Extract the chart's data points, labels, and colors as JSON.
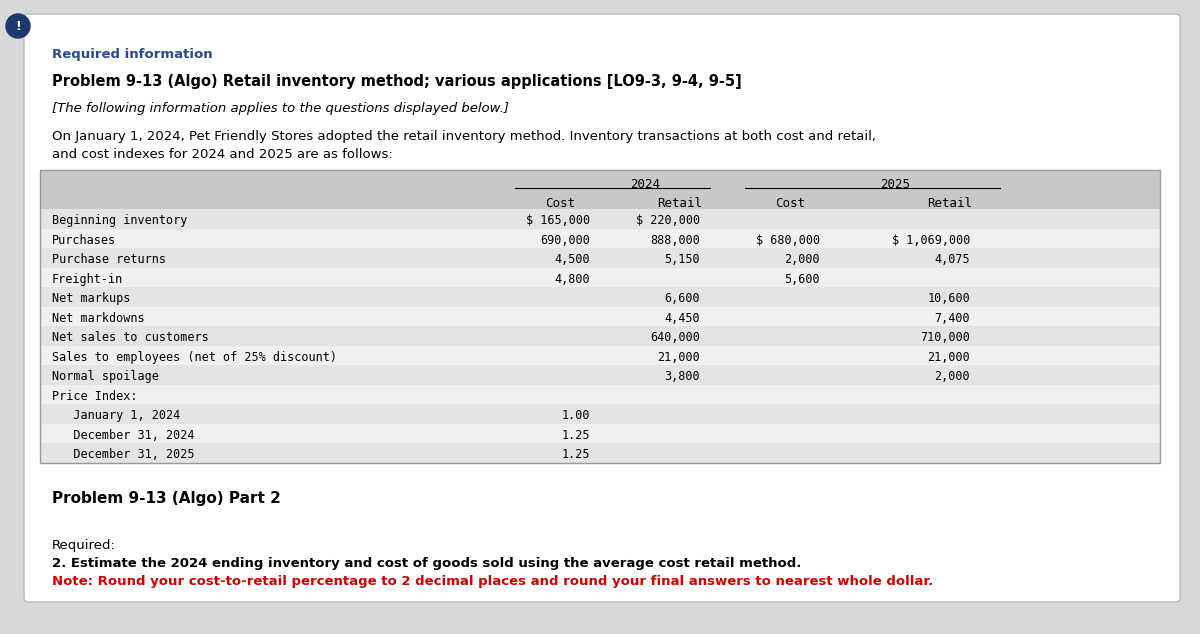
{
  "bg_color": "#d8d8d8",
  "card_color": "#ffffff",
  "required_info_color": "#2b4a8b",
  "circle_color": "#1a3a6b",
  "title_text": "Problem 9-13 (Algo) Retail inventory method; various applications [LO9-3, 9-4, 9-5]",
  "subtitle_text": "[The following information applies to the questions displayed below.]",
  "intro_line1": "On January 1, 2024, Pet Friendly Stores adopted the retail inventory method. Inventory transactions at both cost and retail,",
  "intro_line2": "and cost indexes for 2024 and 2025 are as follows:",
  "rows": [
    {
      "label": "Beginning inventory",
      "2024_cost": "$ 165,000",
      "2024_retail": "$ 220,000",
      "2025_cost": "",
      "2025_retail": ""
    },
    {
      "label": "Purchases",
      "2024_cost": "690,000",
      "2024_retail": "888,000",
      "2025_cost": "$ 680,000",
      "2025_retail": "$ 1,069,000"
    },
    {
      "label": "Purchase returns",
      "2024_cost": "4,500",
      "2024_retail": "5,150",
      "2025_cost": "2,000",
      "2025_retail": "4,075"
    },
    {
      "label": "Freight-in",
      "2024_cost": "4,800",
      "2024_retail": "",
      "2025_cost": "5,600",
      "2025_retail": ""
    },
    {
      "label": "Net markups",
      "2024_cost": "",
      "2024_retail": "6,600",
      "2025_cost": "",
      "2025_retail": "10,600"
    },
    {
      "label": "Net markdowns",
      "2024_cost": "",
      "2024_retail": "4,450",
      "2025_cost": "",
      "2025_retail": "7,400"
    },
    {
      "label": "Net sales to customers",
      "2024_cost": "",
      "2024_retail": "640,000",
      "2025_cost": "",
      "2025_retail": "710,000"
    },
    {
      "label": "Sales to employees (net of 25% discount)",
      "2024_cost": "",
      "2024_retail": "21,000",
      "2025_cost": "",
      "2025_retail": "21,000"
    },
    {
      "label": "Normal spoilage",
      "2024_cost": "",
      "2024_retail": "3,800",
      "2025_cost": "",
      "2025_retail": "2,000"
    },
    {
      "label": "Price Index:",
      "2024_cost": "",
      "2024_retail": "",
      "2025_cost": "",
      "2025_retail": ""
    },
    {
      "label": "   January 1, 2024",
      "2024_cost": "1.00",
      "2024_retail": "",
      "2025_cost": "",
      "2025_retail": ""
    },
    {
      "label": "   December 31, 2024",
      "2024_cost": "1.25",
      "2024_retail": "",
      "2025_cost": "",
      "2025_retail": ""
    },
    {
      "label": "   December 31, 2025",
      "2024_cost": "1.25",
      "2024_retail": "",
      "2025_cost": "",
      "2025_retail": ""
    }
  ],
  "part2_title": "Problem 9-13 (Algo) Part 2",
  "required_label": "Required:",
  "required_text": "2. Estimate the 2024 ending inventory and cost of goods sold using the average cost retail method.",
  "note_text": "Note: Round your cost-to-retail percentage to 2 decimal places and round your final answers to nearest whole dollar.",
  "note_color": "#cc0000",
  "row_colors": [
    "#e4e4e4",
    "#f0f0f0"
  ]
}
